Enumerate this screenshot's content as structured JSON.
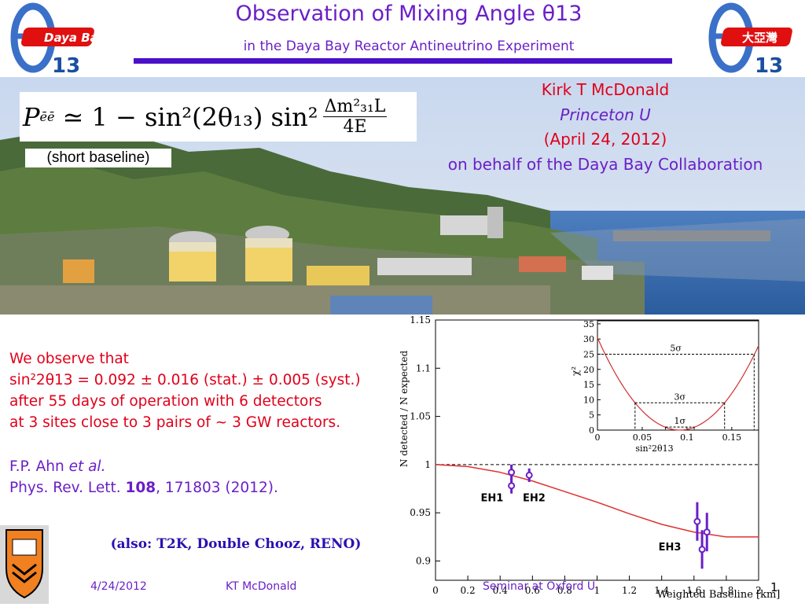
{
  "header": {
    "title": "Observation of Mixing Angle θ13",
    "subtitle": "in the Daya Bay Reactor Antineutrino Experiment",
    "logo_left_text": "Daya Bay",
    "logo_left_num": "13",
    "logo_right_text": "大亞灣",
    "logo_right_num": "13"
  },
  "photo": {
    "formula_left": "P",
    "formula_sub": "ēē",
    "formula_mid": "≃ 1 − sin²(2θ₁₃) sin²",
    "formula_num": "Δm²₃₁L",
    "formula_den": "4E",
    "short_baseline": "(short baseline)",
    "author_name": "Kirk T McDonald",
    "author_affil": "Princeton U",
    "author_date": "(April 24, 2012)",
    "author_behalf": "on behalf of the Daya Bay Collaboration"
  },
  "body": {
    "obs_line1": "We observe that",
    "obs_line2": "sin²2θ13 = 0.092 ± 0.016 (stat.) ± 0.005 (syst.)",
    "obs_line3": "after 55 days of operation with 6 detectors",
    "obs_line4": "at 3 sites close to 3 pairs of ~ 3 GW reactors.",
    "ref_line1_a": "F.P. Ahn ",
    "ref_line1_b": "et al.",
    "ref_line2_a": "Phys. Rev. Lett. ",
    "ref_line2_b": "108",
    "ref_line2_c": ", 171803 (2012).",
    "also": "(also: T2K, Double Chooz, RENO)"
  },
  "footer": {
    "date": "4/24/2012",
    "author": "KT McDonald",
    "venue": "Seminar at Oxford U",
    "page": "1"
  },
  "chart_data": [
    {
      "type": "scatter",
      "xlabel": "Weighted Baseline [km]",
      "ylabel": "N detected / N expected",
      "xlim": [
        0,
        2
      ],
      "ylim": [
        0.88,
        1.15
      ],
      "x_ticks": [
        "0",
        "0.2",
        "0.4",
        "0.6",
        "0.8",
        "1",
        "1.2",
        "1.4",
        "1.6",
        "1.8",
        "2"
      ],
      "y_ticks": [
        "0.9",
        "0.95",
        "1",
        "1.05",
        "1.1",
        "1.15"
      ],
      "reference_line_y": 1.0,
      "labels": [
        "EH1",
        "EH2",
        "EH3"
      ],
      "points": [
        {
          "x": 0.47,
          "y": 0.992,
          "err": 0.008
        },
        {
          "x": 0.47,
          "y": 0.978,
          "err": 0.008
        },
        {
          "x": 0.58,
          "y": 0.989,
          "err": 0.007
        },
        {
          "x": 1.62,
          "y": 0.941,
          "err": 0.02
        },
        {
          "x": 1.65,
          "y": 0.912,
          "err": 0.02
        },
        {
          "x": 1.68,
          "y": 0.93,
          "err": 0.02
        }
      ],
      "curve": [
        {
          "x": 0,
          "y": 1.0
        },
        {
          "x": 0.2,
          "y": 0.998
        },
        {
          "x": 0.4,
          "y": 0.992
        },
        {
          "x": 0.6,
          "y": 0.983
        },
        {
          "x": 0.8,
          "y": 0.972
        },
        {
          "x": 1.0,
          "y": 0.961
        },
        {
          "x": 1.2,
          "y": 0.949
        },
        {
          "x": 1.4,
          "y": 0.938
        },
        {
          "x": 1.6,
          "y": 0.93
        },
        {
          "x": 1.8,
          "y": 0.925
        },
        {
          "x": 2.0,
          "y": 0.925
        }
      ]
    },
    {
      "type": "line",
      "xlabel": "sin²2θ13",
      "ylabel": "χ²",
      "xlim": [
        0,
        0.18
      ],
      "ylim": [
        0,
        36
      ],
      "x_ticks": [
        "0",
        "0.05",
        "0.1",
        "0.15"
      ],
      "y_ticks": [
        "0",
        "5",
        "10",
        "15",
        "20",
        "25",
        "30",
        "35"
      ],
      "sigma_levels": [
        {
          "label": "1σ",
          "chi2": 1,
          "x_low": 0.076,
          "x_high": 0.108
        },
        {
          "label": "3σ",
          "chi2": 9,
          "x_low": 0.042,
          "x_high": 0.142
        },
        {
          "label": "5σ",
          "chi2": 25,
          "x_low": 0.0,
          "x_high": 0.175
        }
      ],
      "minimum": {
        "x": 0.092,
        "y": 0
      }
    }
  ]
}
